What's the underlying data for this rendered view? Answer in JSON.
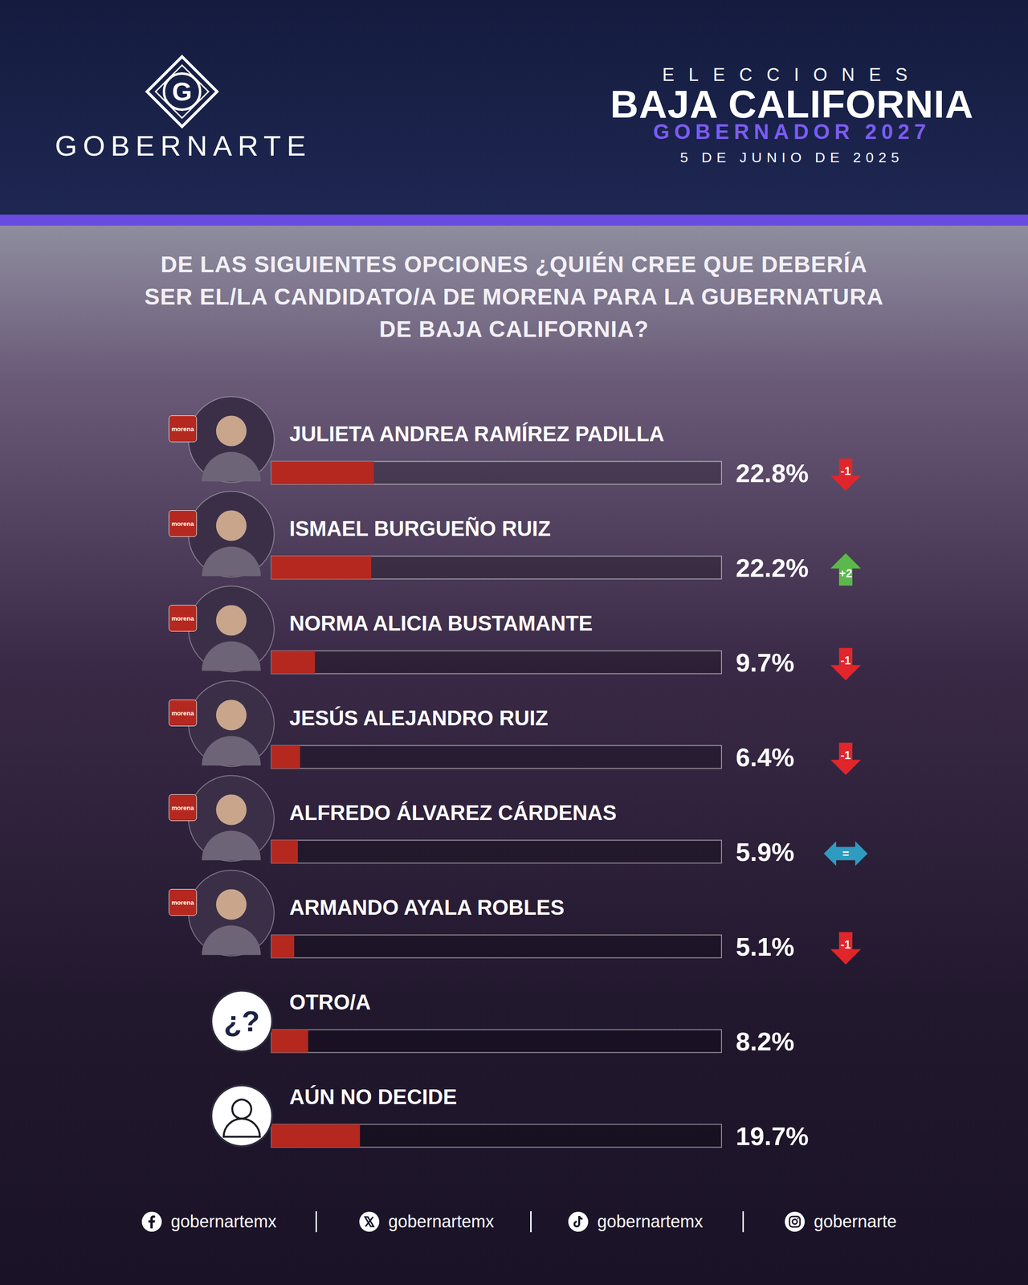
{
  "header": {
    "brand": "GOBERNARTE",
    "logo_letter": "G",
    "kicker": "ELECCIONES",
    "heading": "BAJA CALIFORNIA",
    "subheading": "GOBERNADOR 2027",
    "date": "5 DE JUNIO DE 2025"
  },
  "chart_data": {
    "type": "bar",
    "orientation": "horizontal",
    "title": "DE LAS SIGUIENTES OPCIONES ¿QUIÉN CREE QUE DEBERÍA SER EL/LA CANDIDATO/A DE MORENA PARA LA GUBERNATURA DE BAJA CALIFORNIA?",
    "categories": [
      "JULIETA ANDREA RAMÍREZ PADILLA",
      "ISMAEL BURGUEÑO RUIZ",
      "NORMA ALICIA BUSTAMANTE",
      "JESÚS ALEJANDRO RUIZ",
      "ALFREDO ÁLVAREZ CÁRDENAS",
      "ARMANDO AYALA ROBLES",
      "OTRO/A",
      "AÚN NO DECIDE"
    ],
    "values": [
      22.8,
      22.2,
      9.7,
      6.4,
      5.9,
      5.1,
      8.2,
      19.7
    ],
    "value_labels": [
      "22.8%",
      "22.2%",
      "9.7%",
      "6.4%",
      "5.9%",
      "5.1%",
      "8.2%",
      "19.7%"
    ],
    "changes": [
      -1,
      2,
      -1,
      -1,
      0,
      -1,
      null,
      null
    ],
    "change_labels": [
      "-1",
      "+2",
      "-1",
      "-1",
      "=",
      "-1",
      null,
      null
    ],
    "parties": [
      "morena",
      "morena",
      "morena",
      "morena",
      "morena",
      "morena",
      null,
      null
    ],
    "icons": [
      null,
      null,
      null,
      null,
      null,
      null,
      "¿?",
      null
    ],
    "color": "#b5281f",
    "xlim": [
      0,
      100
    ],
    "data_labels": true,
    "tick_labels": false,
    "grid": false
  },
  "footer": {
    "handles": [
      "gobernartemx",
      "gobernartemx",
      "gobernartemx",
      "gobernarte"
    ]
  }
}
